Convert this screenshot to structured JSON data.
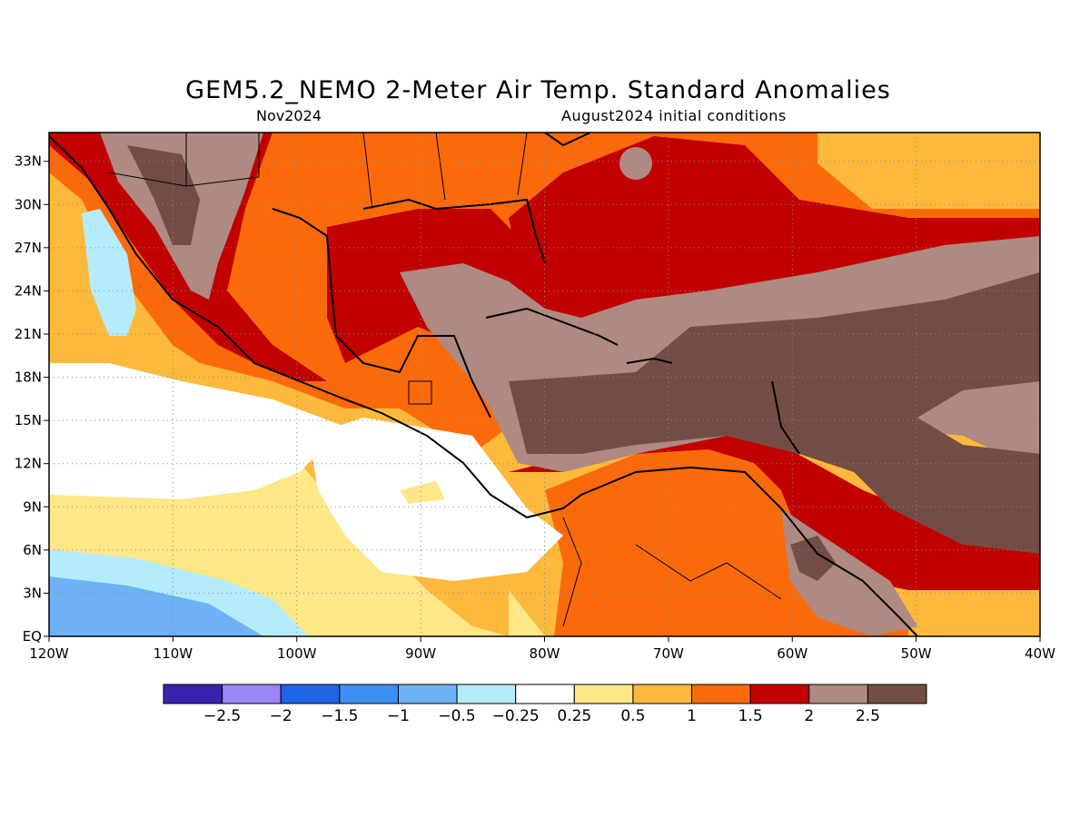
{
  "title": "GEM5.2_NEMO 2-Meter Air Temp. Standard Anomalies",
  "subtitle_left": "Nov2024",
  "subtitle_right": "August2024 initial conditions",
  "chart_data": {
    "type": "heatmap",
    "x_ticks": [
      "120W",
      "110W",
      "100W",
      "90W",
      "80W",
      "70W",
      "60W",
      "50W",
      "40W"
    ],
    "y_ticks": [
      "EQ",
      "3N",
      "6N",
      "9N",
      "12N",
      "15N",
      "18N",
      "21N",
      "24N",
      "27N",
      "30N",
      "33N"
    ],
    "xlim": [
      -120,
      -40
    ],
    "ylim": [
      0,
      35
    ],
    "grid": true,
    "colorbar": {
      "labels": [
        "-2.5",
        "-2",
        "-1.5",
        "-1",
        "-0.5",
        "-0.25",
        "0.25",
        "0.5",
        "1",
        "1.5",
        "2",
        "2.5"
      ],
      "colors": [
        "#3a22b0",
        "#9a85f5",
        "#1f63e6",
        "#3d8ff5",
        "#6fb1f7",
        "#b5ecfb",
        "#ffffff",
        "#fde787",
        "#fdb93c",
        "#fb6a0a",
        "#c10000",
        "#ae8a82",
        "#734d45"
      ]
    }
  }
}
